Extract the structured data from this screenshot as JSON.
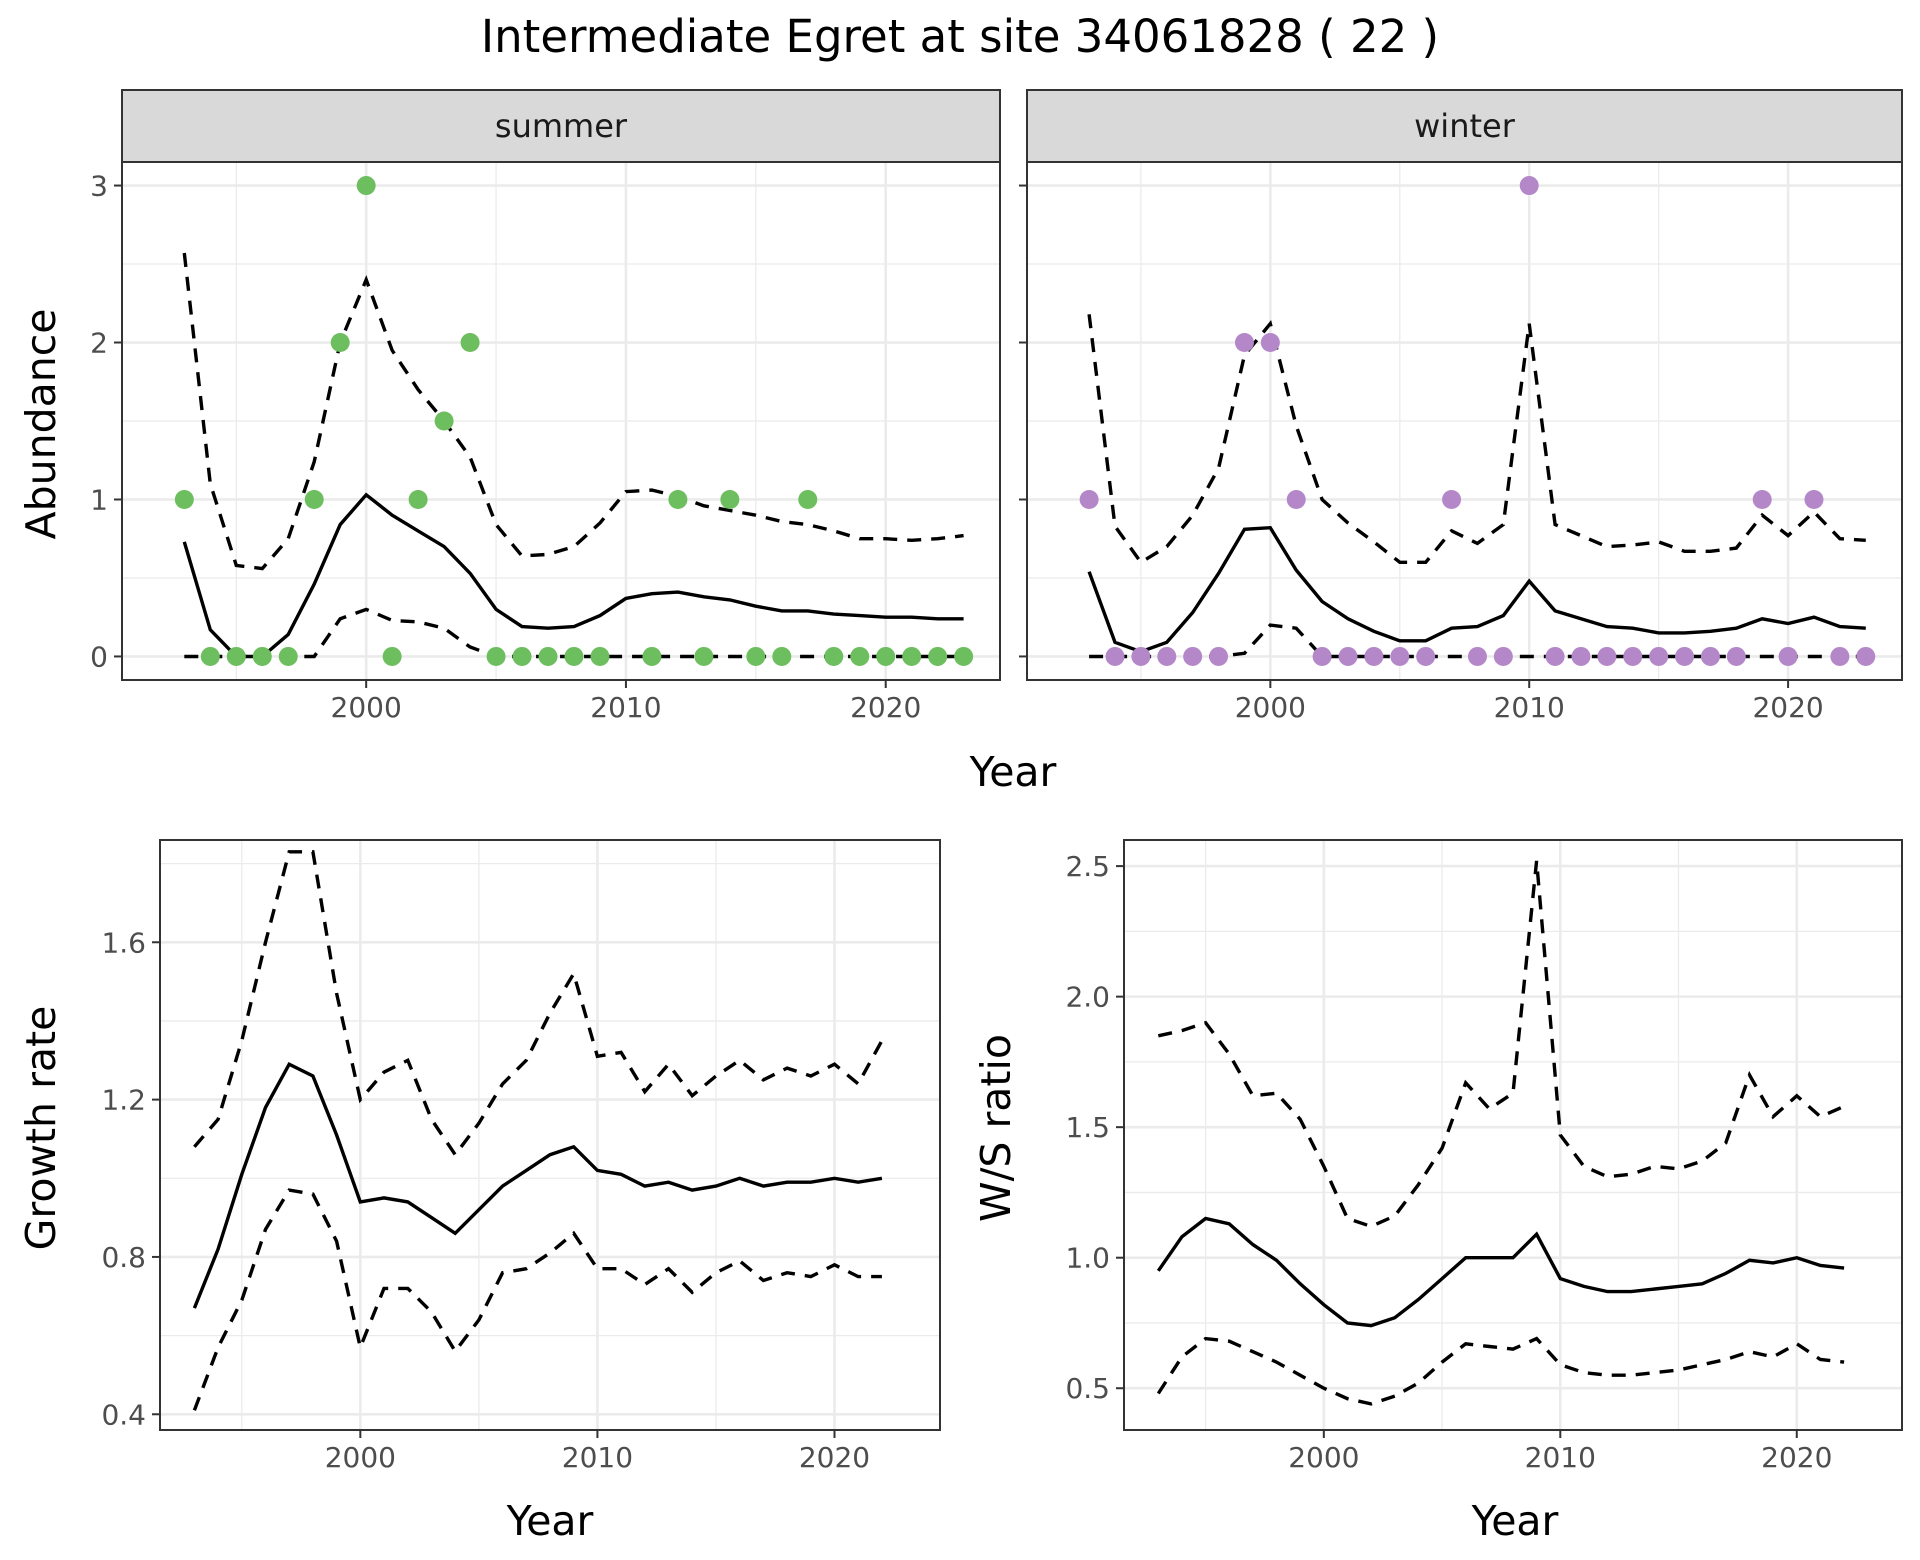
{
  "title": "Intermediate Egret at site 34061828 ( 22 )",
  "chart_data": [
    {
      "type": "line",
      "facet": "summer",
      "xlabel": "Year",
      "ylabel": "Abundance",
      "xticks": [
        2000,
        2010,
        2020
      ],
      "yticks": [
        0,
        1,
        2,
        3
      ],
      "xlim": [
        1990.6,
        2024.4
      ],
      "ylim": [
        -0.15,
        3.15
      ],
      "point_color": "#6dbe5e",
      "x": [
        1993,
        1994,
        1995,
        1996,
        1997,
        1998,
        1999,
        2000,
        2001,
        2002,
        2003,
        2004,
        2005,
        2006,
        2007,
        2008,
        2009,
        2010,
        2011,
        2012,
        2013,
        2014,
        2015,
        2016,
        2017,
        2018,
        2019,
        2020,
        2021,
        2022,
        2023
      ],
      "fit": [
        0.73,
        0.17,
        0,
        0,
        0.14,
        0.46,
        0.84,
        1.03,
        0.9,
        0.8,
        0.7,
        0.53,
        0.3,
        0.19,
        0.18,
        0.19,
        0.26,
        0.37,
        0.4,
        0.41,
        0.38,
        0.36,
        0.32,
        0.29,
        0.29,
        0.27,
        0.26,
        0.25,
        0.25,
        0.24,
        0.24
      ],
      "lower": [
        0,
        0,
        0,
        0,
        0,
        0,
        0.24,
        0.3,
        0.23,
        0.22,
        0.18,
        0.06,
        0,
        0,
        0,
        0,
        0,
        0,
        0,
        0,
        0,
        0,
        0,
        0,
        0,
        0,
        0,
        0,
        0,
        0,
        0
      ],
      "upper": [
        2.57,
        1.1,
        0.58,
        0.56,
        0.75,
        1.24,
        2.0,
        2.4,
        1.95,
        1.7,
        1.5,
        1.27,
        0.84,
        0.64,
        0.65,
        0.7,
        0.85,
        1.05,
        1.06,
        1.02,
        0.96,
        0.93,
        0.9,
        0.86,
        0.84,
        0.8,
        0.75,
        0.75,
        0.74,
        0.75,
        0.77
      ],
      "observed": [
        1,
        0,
        0,
        0,
        0,
        1,
        2,
        3,
        0,
        1,
        1.5,
        2,
        0,
        0,
        0,
        0,
        0,
        null,
        0,
        1,
        0,
        1,
        0,
        0,
        1,
        0,
        0,
        0,
        0,
        0,
        0
      ]
    },
    {
      "type": "line",
      "facet": "winter",
      "xlabel": "Year",
      "ylabel": "Abundance",
      "xticks": [
        2000,
        2010,
        2020
      ],
      "yticks": [
        0,
        1,
        2,
        3
      ],
      "xlim": [
        1990.6,
        2024.4
      ],
      "ylim": [
        -0.15,
        3.15
      ],
      "point_color": "#b488c8",
      "x": [
        1993,
        1994,
        1995,
        1996,
        1997,
        1998,
        1999,
        2000,
        2001,
        2002,
        2003,
        2004,
        2005,
        2006,
        2007,
        2008,
        2009,
        2010,
        2011,
        2012,
        2013,
        2014,
        2015,
        2016,
        2017,
        2018,
        2019,
        2020,
        2021,
        2022,
        2023
      ],
      "fit": [
        0.54,
        0.09,
        0.03,
        0.09,
        0.28,
        0.53,
        0.81,
        0.82,
        0.55,
        0.35,
        0.24,
        0.16,
        0.1,
        0.1,
        0.18,
        0.19,
        0.26,
        0.48,
        0.29,
        0.24,
        0.19,
        0.18,
        0.15,
        0.15,
        0.16,
        0.18,
        0.24,
        0.21,
        0.25,
        0.19,
        0.18
      ],
      "lower": [
        0,
        0,
        0,
        0,
        0,
        0,
        0.02,
        0.2,
        0.18,
        0,
        0,
        0,
        0,
        0,
        0,
        0,
        0,
        0,
        0,
        0,
        0,
        0,
        0,
        0,
        0,
        0,
        0,
        0,
        0,
        0,
        0
      ],
      "upper": [
        2.18,
        0.83,
        0.6,
        0.7,
        0.9,
        1.2,
        1.92,
        2.12,
        1.47,
        1.0,
        0.85,
        0.73,
        0.6,
        0.6,
        0.8,
        0.72,
        0.84,
        2.12,
        0.84,
        0.77,
        0.7,
        0.71,
        0.73,
        0.67,
        0.67,
        0.69,
        0.9,
        0.77,
        0.92,
        0.75,
        0.74
      ],
      "observed": [
        1,
        0,
        0,
        0,
        0,
        0,
        2,
        2,
        1,
        0,
        0,
        0,
        0,
        0,
        1,
        0,
        0,
        3,
        0,
        0,
        0,
        0,
        0,
        0,
        0,
        0,
        1,
        0,
        1,
        0,
        0
      ]
    },
    {
      "type": "line",
      "xlabel": "Year",
      "ylabel": "Growth rate",
      "xticks": [
        2000,
        2010,
        2020
      ],
      "yticks": [
        0.4,
        0.8,
        1.2,
        1.6
      ],
      "xlim": [
        1991.55,
        2024.45
      ],
      "ylim": [
        0.36,
        1.86
      ],
      "x": [
        1993,
        1994,
        1995,
        1996,
        1997,
        1998,
        1999,
        2000,
        2001,
        2002,
        2003,
        2004,
        2005,
        2006,
        2007,
        2008,
        2009,
        2010,
        2011,
        2012,
        2013,
        2014,
        2015,
        2016,
        2017,
        2018,
        2019,
        2020,
        2021,
        2022
      ],
      "fit": [
        0.67,
        0.82,
        1.01,
        1.18,
        1.29,
        1.26,
        1.11,
        0.94,
        0.95,
        0.94,
        0.9,
        0.86,
        0.92,
        0.98,
        1.02,
        1.06,
        1.08,
        1.02,
        1.01,
        0.98,
        0.99,
        0.97,
        0.98,
        1.0,
        0.98,
        0.99,
        0.99,
        1.0,
        0.99,
        1.0
      ],
      "lower": [
        0.41,
        0.57,
        0.69,
        0.87,
        0.97,
        0.96,
        0.84,
        0.57,
        0.72,
        0.72,
        0.66,
        0.56,
        0.64,
        0.76,
        0.77,
        0.81,
        0.86,
        0.77,
        0.77,
        0.73,
        0.77,
        0.71,
        0.76,
        0.79,
        0.74,
        0.76,
        0.75,
        0.78,
        0.75,
        0.75
      ],
      "upper": [
        1.08,
        1.15,
        1.35,
        1.6,
        1.83,
        1.83,
        1.47,
        1.2,
        1.27,
        1.3,
        1.15,
        1.06,
        1.14,
        1.24,
        1.3,
        1.42,
        1.52,
        1.31,
        1.32,
        1.22,
        1.29,
        1.21,
        1.26,
        1.3,
        1.25,
        1.28,
        1.26,
        1.29,
        1.24,
        1.35
      ]
    },
    {
      "type": "line",
      "xlabel": "Year",
      "ylabel": "W/S ratio",
      "xticks": [
        2000,
        2010,
        2020
      ],
      "yticks": [
        0.5,
        1.0,
        1.5,
        2.0,
        2.5
      ],
      "ytick_labels": [
        "0.5",
        "1.0",
        "1.5",
        "2.0",
        "2.5"
      ],
      "xlim": [
        1991.55,
        2024.45
      ],
      "ylim": [
        0.34,
        2.6
      ],
      "x": [
        1993,
        1994,
        1995,
        1996,
        1997,
        1998,
        1999,
        2000,
        2001,
        2002,
        2003,
        2004,
        2005,
        2006,
        2007,
        2008,
        2009,
        2010,
        2011,
        2012,
        2013,
        2014,
        2015,
        2016,
        2017,
        2018,
        2019,
        2020,
        2021,
        2022
      ],
      "fit": [
        0.95,
        1.08,
        1.15,
        1.13,
        1.05,
        0.99,
        0.9,
        0.82,
        0.75,
        0.74,
        0.77,
        0.84,
        0.92,
        1.0,
        1.0,
        1.0,
        1.09,
        0.92,
        0.89,
        0.87,
        0.87,
        0.88,
        0.89,
        0.9,
        0.94,
        0.99,
        0.98,
        1.0,
        0.97,
        0.96
      ],
      "lower": [
        0.48,
        0.62,
        0.69,
        0.68,
        0.64,
        0.6,
        0.55,
        0.5,
        0.46,
        0.44,
        0.47,
        0.52,
        0.6,
        0.67,
        0.66,
        0.65,
        0.69,
        0.59,
        0.56,
        0.55,
        0.55,
        0.56,
        0.57,
        0.59,
        0.61,
        0.64,
        0.62,
        0.67,
        0.61,
        0.6
      ],
      "upper": [
        1.85,
        1.87,
        1.9,
        1.78,
        1.62,
        1.63,
        1.53,
        1.35,
        1.15,
        1.12,
        1.16,
        1.28,
        1.42,
        1.67,
        1.57,
        1.63,
        2.52,
        1.47,
        1.35,
        1.31,
        1.32,
        1.35,
        1.34,
        1.37,
        1.44,
        1.7,
        1.54,
        1.62,
        1.54,
        1.58
      ]
    }
  ]
}
